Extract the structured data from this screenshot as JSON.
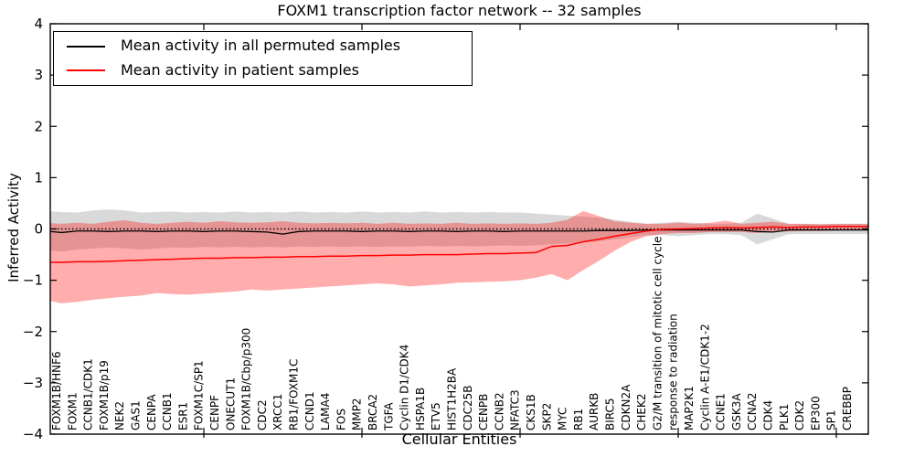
{
  "chart_data": {
    "type": "line",
    "title": "FOXM1 transcription factor network -- 32 samples",
    "xlabel": "Cellular Entities",
    "ylabel": "Inferred Activity",
    "ylim": [
      -4,
      4
    ],
    "ytick_values": [
      4,
      3,
      2,
      1,
      0,
      -1,
      -2,
      -3,
      -4
    ],
    "ytick_labels": [
      "4",
      "3",
      "2",
      "1",
      "0",
      "−1",
      "−2",
      "−3",
      "−4"
    ],
    "x_major_tick_every": 10,
    "grid": false,
    "legend_position": "upper left",
    "zero_line": {
      "style": "dotted",
      "color": "#000000",
      "y": 0
    },
    "categories": [
      "FOXM1B/HNF6",
      "FOXM1",
      "CCNB1/CDK1",
      "FOXM1B/p19",
      "NEK2",
      "GAS1",
      "CENPA",
      "CCNB1",
      "ESR1",
      "FOXM1C/SP1",
      "CENPF",
      "ONECUT1",
      "FOXM1B/Cbp/p300",
      "CDC2",
      "XRCC1",
      "RB1/FOXM1C",
      "CCND1",
      "LAMA4",
      "FOS",
      "MMP2",
      "BRCA2",
      "TGFA",
      "Cyclin D1/CDK4",
      "HSPA1B",
      "ETV5",
      "HIST1H2BA",
      "CDC25B",
      "CENPB",
      "CCNB2",
      "NFATC3",
      "CKS1B",
      "SKP2",
      "MYC",
      "RB1",
      "AURKB",
      "BIRC5",
      "CDKN2A",
      "CHEK2",
      "G2/M transition of mitotic cell cycle",
      "response to radiation",
      "MAP2K1",
      "Cyclin A-E1/CDK1-2",
      "CCNE1",
      "GSK3A",
      "CCNA2",
      "CDK4",
      "PLK1",
      "CDK2",
      "EP300",
      "SP1",
      "CREBBP"
    ],
    "series": [
      {
        "name": "Mean activity in all permuted samples",
        "color": "#000000",
        "values": [
          -0.04,
          -0.07,
          -0.04,
          -0.04,
          -0.05,
          -0.04,
          -0.04,
          -0.05,
          -0.04,
          -0.04,
          -0.05,
          -0.04,
          -0.04,
          -0.05,
          -0.06,
          -0.1,
          -0.05,
          -0.04,
          -0.04,
          -0.04,
          -0.05,
          -0.04,
          -0.04,
          -0.05,
          -0.04,
          -0.04,
          -0.05,
          -0.04,
          -0.04,
          -0.05,
          -0.04,
          -0.04,
          -0.04,
          -0.04,
          -0.04,
          -0.03,
          -0.03,
          -0.03,
          -0.02,
          -0.02,
          -0.02,
          -0.02,
          -0.02,
          -0.02,
          -0.02,
          -0.05,
          -0.06,
          -0.02,
          -0.02,
          -0.02,
          -0.02
        ]
      },
      {
        "name": "Mean activity in patient samples",
        "color": "#ff0000",
        "values": [
          -0.65,
          -0.65,
          -0.64,
          -0.64,
          -0.63,
          -0.62,
          -0.61,
          -0.6,
          -0.59,
          -0.58,
          -0.57,
          -0.57,
          -0.56,
          -0.56,
          -0.55,
          -0.55,
          -0.54,
          -0.54,
          -0.53,
          -0.53,
          -0.52,
          -0.52,
          -0.51,
          -0.51,
          -0.5,
          -0.5,
          -0.5,
          -0.49,
          -0.48,
          -0.48,
          -0.47,
          -0.46,
          -0.34,
          -0.32,
          -0.25,
          -0.2,
          -0.14,
          -0.09,
          -0.04,
          -0.01,
          0.0,
          0.01,
          0.02,
          0.03,
          0.02,
          0.03,
          0.04,
          0.03,
          0.04,
          0.04,
          0.05
        ]
      }
    ],
    "bands": [
      {
        "band_name": "permuted-samples-std-band",
        "color": "#000000",
        "opacity": 0.15,
        "upper": [
          0.35,
          0.33,
          0.32,
          0.36,
          0.38,
          0.36,
          0.32,
          0.33,
          0.34,
          0.32,
          0.33,
          0.32,
          0.34,
          0.32,
          0.33,
          0.32,
          0.34,
          0.32,
          0.33,
          0.32,
          0.34,
          0.32,
          0.33,
          0.32,
          0.34,
          0.32,
          0.33,
          0.32,
          0.33,
          0.32,
          0.32,
          0.3,
          0.28,
          0.26,
          0.24,
          0.22,
          0.18,
          0.14,
          0.1,
          0.12,
          0.14,
          0.12,
          0.1,
          0.1,
          0.12,
          0.3,
          0.2,
          0.1,
          0.1,
          0.1,
          0.1
        ],
        "lower": [
          -0.42,
          -0.44,
          -0.4,
          -0.38,
          -0.36,
          -0.38,
          -0.4,
          -0.38,
          -0.36,
          -0.37,
          -0.35,
          -0.36,
          -0.35,
          -0.36,
          -0.35,
          -0.36,
          -0.34,
          -0.35,
          -0.34,
          -0.35,
          -0.34,
          -0.35,
          -0.34,
          -0.34,
          -0.33,
          -0.34,
          -0.33,
          -0.34,
          -0.33,
          -0.32,
          -0.33,
          -0.32,
          -0.3,
          -0.28,
          -0.26,
          -0.24,
          -0.2,
          -0.16,
          -0.12,
          -0.12,
          -0.14,
          -0.12,
          -0.1,
          -0.1,
          -0.12,
          -0.3,
          -0.2,
          -0.1,
          -0.1,
          -0.1,
          -0.1
        ]
      },
      {
        "band_name": "patient-samples-std-band",
        "color": "#ff0000",
        "opacity": 0.32,
        "upper": [
          0.12,
          0.1,
          0.12,
          0.1,
          0.14,
          0.17,
          0.12,
          0.1,
          0.12,
          0.14,
          0.12,
          0.15,
          0.13,
          0.12,
          0.13,
          0.15,
          0.12,
          0.11,
          0.12,
          0.11,
          0.12,
          0.1,
          0.12,
          0.1,
          0.11,
          0.1,
          0.12,
          0.1,
          0.11,
          0.1,
          0.11,
          0.1,
          0.12,
          0.18,
          0.35,
          0.25,
          0.15,
          0.12,
          0.1,
          0.1,
          0.12,
          0.1,
          0.12,
          0.16,
          0.1,
          0.12,
          0.14,
          0.1,
          0.1,
          0.09,
          0.1
        ],
        "lower": [
          -1.38,
          -1.45,
          -1.42,
          -1.38,
          -1.35,
          -1.32,
          -1.3,
          -1.25,
          -1.27,
          -1.28,
          -1.26,
          -1.24,
          -1.22,
          -1.18,
          -1.2,
          -1.18,
          -1.16,
          -1.14,
          -1.12,
          -1.1,
          -1.08,
          -1.06,
          -1.08,
          -1.12,
          -1.1,
          -1.08,
          -1.05,
          -1.04,
          -1.03,
          -1.02,
          -1.0,
          -0.95,
          -0.88,
          -1.0,
          -0.8,
          -0.62,
          -0.42,
          -0.25,
          -0.14,
          -0.1,
          -0.08,
          -0.08,
          -0.06,
          -0.06,
          -0.06,
          -0.08,
          -0.06,
          -0.05,
          -0.04,
          -0.04,
          -0.03
        ]
      }
    ]
  }
}
